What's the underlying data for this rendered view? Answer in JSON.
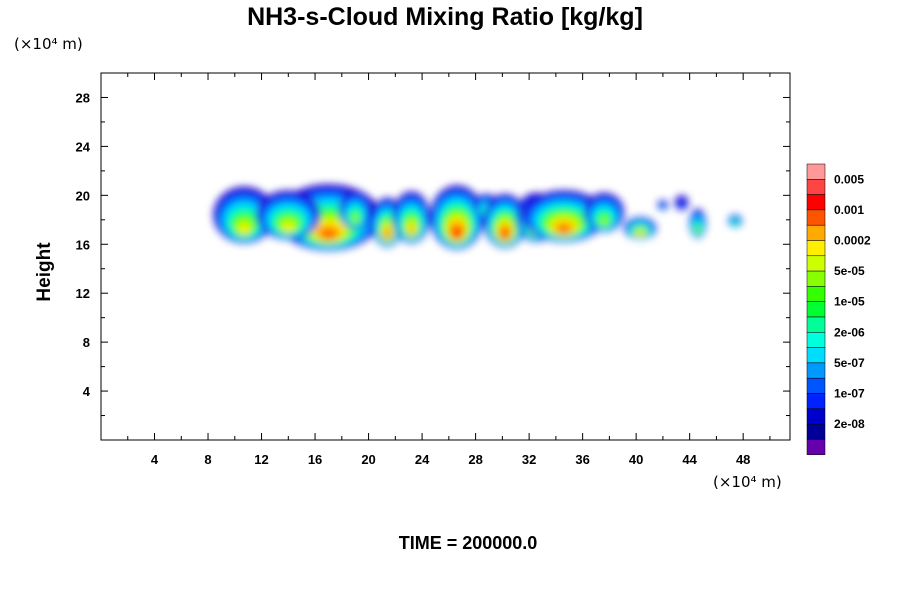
{
  "chart_data": {
    "type": "heatmap",
    "title": "NH3-s-Cloud Mixing Ratio [kg/kg]",
    "ylabel": "Height",
    "xlabel": "",
    "x_unit": "(×10⁴ m)",
    "y_unit": "(×10⁴ m)",
    "xlim": [
      0,
      51.5
    ],
    "ylim": [
      0,
      30
    ],
    "x_ticks": [
      4,
      8,
      12,
      16,
      20,
      24,
      28,
      32,
      36,
      40,
      44,
      48
    ],
    "y_ticks": [
      4,
      8,
      12,
      16,
      20,
      24,
      28
    ],
    "x_tick_labels": [
      "4",
      "8",
      "12",
      "16",
      "20",
      "24",
      "28",
      "32",
      "36",
      "40",
      "44",
      "48"
    ],
    "y_tick_labels": [
      "4",
      "8",
      "12",
      "16",
      "20",
      "24",
      "28"
    ],
    "x_minor_step": 2,
    "y_minor_step": 2,
    "colorbar": {
      "colors": [
        "#ff9999",
        "#ff4444",
        "#ff0000",
        "#ff5500",
        "#ffaa00",
        "#ffee00",
        "#ccff00",
        "#88ff00",
        "#33ff00",
        "#00ff33",
        "#00ff99",
        "#00ffdd",
        "#00ddff",
        "#0099ff",
        "#0055ff",
        "#0022ff",
        "#0000cc",
        "#000099",
        "#6600aa"
      ],
      "labels": [
        "0.005",
        "0.001",
        "0.0002",
        "5e-05",
        "1e-05",
        "2e-06",
        "5e-07",
        "1e-07",
        "2e-08"
      ]
    },
    "cloud_level_colors": [
      "#2200cc",
      "#0033ff",
      "#0099ff",
      "#00ddff",
      "#00ff99",
      "#33ff00",
      "#99ff00",
      "#ffee00",
      "#ffaa00",
      "#ff5500",
      "#ff0000"
    ],
    "cloud_cells": [
      {
        "x": 10.7,
        "y": 18.4,
        "w": 2.3,
        "h": 2.3,
        "level": 7
      },
      {
        "x": 17.0,
        "y": 18.2,
        "w": 3.9,
        "h": 2.7,
        "level": 9
      },
      {
        "x": 14.0,
        "y": 18.4,
        "w": 2.4,
        "h": 2.0,
        "level": 7
      },
      {
        "x": 19.0,
        "y": 18.8,
        "w": 1.2,
        "h": 1.6,
        "level": 6
      },
      {
        "x": 21.4,
        "y": 17.8,
        "w": 1.2,
        "h": 2.0,
        "level": 9
      },
      {
        "x": 23.2,
        "y": 18.2,
        "w": 1.4,
        "h": 2.1,
        "level": 8
      },
      {
        "x": 26.6,
        "y": 18.2,
        "w": 2.0,
        "h": 2.6,
        "level": 10
      },
      {
        "x": 28.8,
        "y": 19.1,
        "w": 1.0,
        "h": 1.0,
        "level": 5
      },
      {
        "x": 30.2,
        "y": 17.9,
        "w": 1.6,
        "h": 2.2,
        "level": 10
      },
      {
        "x": 32.5,
        "y": 18.2,
        "w": 1.5,
        "h": 2.0,
        "level": 8
      },
      {
        "x": 34.6,
        "y": 18.3,
        "w": 3.1,
        "h": 2.1,
        "level": 9
      },
      {
        "x": 37.6,
        "y": 18.6,
        "w": 1.5,
        "h": 1.6,
        "level": 6
      },
      {
        "x": 40.3,
        "y": 17.3,
        "w": 1.2,
        "h": 0.9,
        "level": 8
      },
      {
        "x": 44.6,
        "y": 17.7,
        "w": 0.6,
        "h": 1.2,
        "level": 6
      },
      {
        "x": 47.4,
        "y": 17.9,
        "w": 0.5,
        "h": 0.5,
        "level": 5
      },
      {
        "x": 42.0,
        "y": 19.2,
        "w": 0.4,
        "h": 0.4,
        "level": 2
      },
      {
        "x": 43.4,
        "y": 19.4,
        "w": 0.5,
        "h": 0.6,
        "level": 1
      }
    ],
    "time_label": "TIME = 200000.0"
  }
}
